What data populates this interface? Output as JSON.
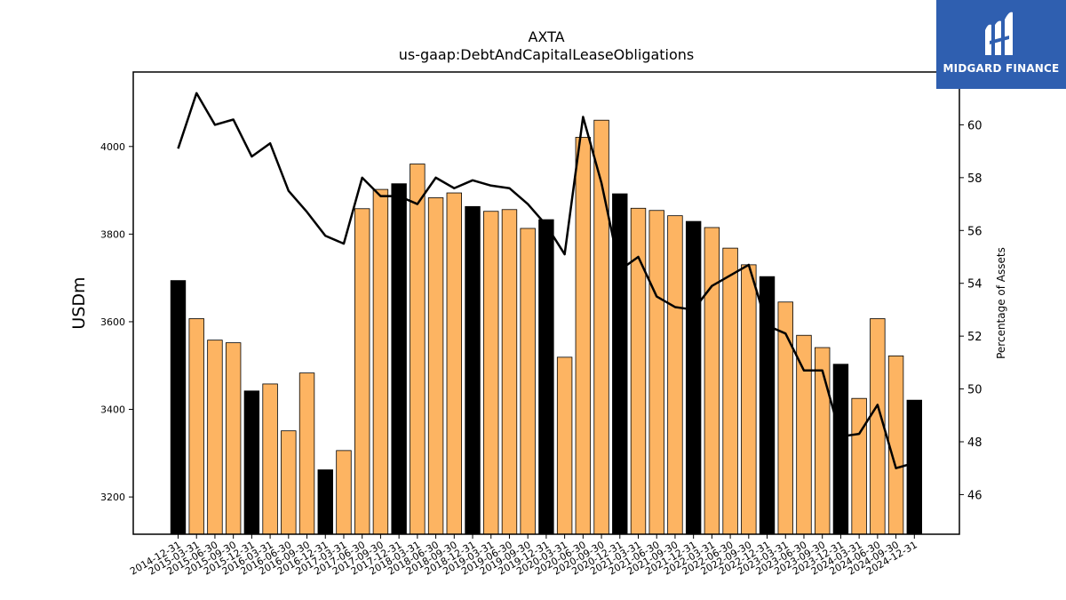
{
  "title": "AXTA",
  "subtitle": "us-gaap:DebtAndCapitalLeaseObligations",
  "brand": {
    "name": "MIDGARD FINANCE",
    "bg_color": "#2f5fb0"
  },
  "colors": {
    "bar_quarter": "#fdb462",
    "bar_year_end": "#000000",
    "line": "#000000"
  },
  "chart_data": {
    "type": "bar",
    "xlabel": "",
    "ylabel": "USDm",
    "y2label": "Percentage of Assets",
    "ylim": [
      3115,
      4170
    ],
    "y2lim": [
      44.5,
      62.0
    ],
    "yticks": [
      3200,
      3400,
      3600,
      3800,
      4000
    ],
    "y2ticks": [
      46,
      48,
      50,
      52,
      54,
      56,
      58,
      60
    ],
    "categories": [
      "2014-12-31",
      "2015-03-31",
      "2015-06-30",
      "2015-09-30",
      "2015-12-31",
      "2016-03-31",
      "2016-06-30",
      "2016-09-30",
      "2016-12-31",
      "2017-03-31",
      "2017-06-30",
      "2017-09-30",
      "2017-12-31",
      "2018-03-31",
      "2018-06-30",
      "2018-09-30",
      "2018-12-31",
      "2019-03-31",
      "2019-06-30",
      "2019-09-30",
      "2019-12-31",
      "2020-03-31",
      "2020-06-30",
      "2020-09-30",
      "2020-12-31",
      "2021-03-31",
      "2021-06-30",
      "2021-09-30",
      "2021-12-31",
      "2022-03-31",
      "2022-06-30",
      "2022-09-30",
      "2022-12-31",
      "2023-03-31",
      "2023-06-30",
      "2023-09-30",
      "2023-12-31",
      "2024-03-31",
      "2024-06-30",
      "2024-09-30",
      "2024-12-31"
    ],
    "series": [
      {
        "type": "bar",
        "values": [
          3694,
          3607,
          3558,
          3552,
          3442,
          3458,
          3351,
          3483,
          3262,
          3306,
          3858,
          3902,
          3915,
          3960,
          3883,
          3894,
          3863,
          3852,
          3856,
          3813,
          3833,
          3519,
          4021,
          4060,
          3892,
          3859,
          3854,
          3842,
          3829,
          3815,
          3768,
          3730,
          3703,
          3645,
          3569,
          3541,
          3503,
          3425,
          3607,
          3522,
          3421
        ]
      },
      {
        "type": "line",
        "axis": "right",
        "values": [
          59.1,
          61.2,
          60.0,
          60.2,
          58.8,
          59.3,
          57.5,
          56.7,
          55.8,
          55.5,
          58.0,
          57.3,
          57.3,
          57.0,
          58.0,
          57.6,
          57.9,
          57.7,
          57.6,
          57.0,
          56.2,
          55.1,
          60.3,
          57.8,
          54.5,
          55.0,
          53.5,
          53.1,
          53.0,
          53.9,
          54.3,
          54.7,
          52.4,
          52.1,
          50.7,
          50.7,
          48.2,
          48.3,
          49.4,
          47.0,
          47.2
        ]
      }
    ],
    "grid": false,
    "legend": "none"
  }
}
